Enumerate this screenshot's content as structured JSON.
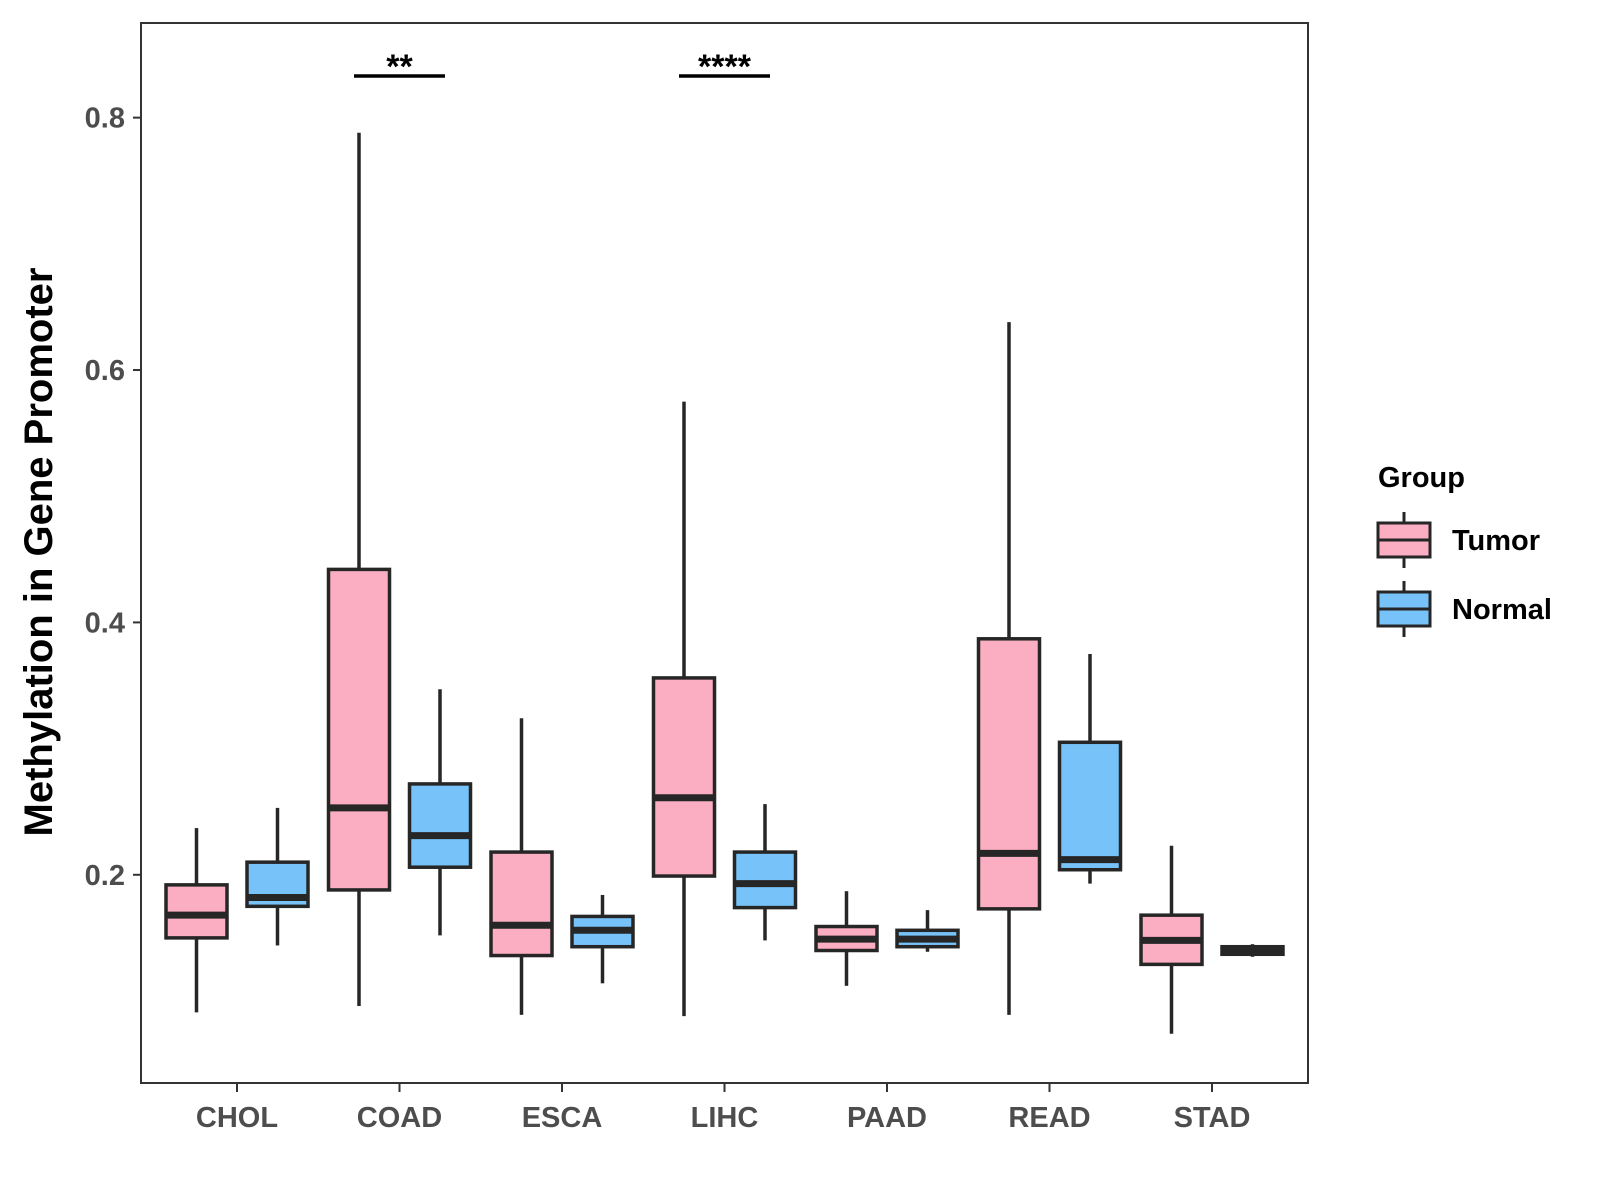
{
  "chart_data": {
    "type": "boxplot",
    "title": "",
    "xlabel": "",
    "ylabel": "Methylation in Gene Promoter",
    "ylim": [
      0.035,
      0.875
    ],
    "yticks": [
      0.2,
      0.4,
      0.6,
      0.8
    ],
    "ytick_labels": [
      "0.2",
      "0.4",
      "0.6",
      "0.8"
    ],
    "categories": [
      "CHOL",
      "COAD",
      "ESCA",
      "LIHC",
      "PAAD",
      "READ",
      "STAD"
    ],
    "legend": {
      "title": "Group",
      "position": "right",
      "items": [
        {
          "name": "Tumor",
          "color": "#FBAEC1"
        },
        {
          "name": "Normal",
          "color": "#77C2F8"
        }
      ]
    },
    "series": [
      {
        "name": "Tumor",
        "color": "#FBAEC1",
        "boxes": [
          {
            "min": 0.091,
            "q1": 0.15,
            "median": 0.168,
            "q3": 0.192,
            "max": 0.237
          },
          {
            "min": 0.096,
            "q1": 0.188,
            "median": 0.253,
            "q3": 0.442,
            "max": 0.788
          },
          {
            "min": 0.089,
            "q1": 0.136,
            "median": 0.16,
            "q3": 0.218,
            "max": 0.324
          },
          {
            "min": 0.088,
            "q1": 0.199,
            "median": 0.261,
            "q3": 0.356,
            "max": 0.575
          },
          {
            "min": 0.112,
            "q1": 0.14,
            "median": 0.149,
            "q3": 0.159,
            "max": 0.187
          },
          {
            "min": 0.089,
            "q1": 0.173,
            "median": 0.217,
            "q3": 0.387,
            "max": 0.638
          },
          {
            "min": 0.074,
            "q1": 0.129,
            "median": 0.148,
            "q3": 0.168,
            "max": 0.223
          }
        ]
      },
      {
        "name": "Normal",
        "color": "#77C2F8",
        "boxes": [
          {
            "min": 0.144,
            "q1": 0.175,
            "median": 0.182,
            "q3": 0.21,
            "max": 0.253
          },
          {
            "min": 0.152,
            "q1": 0.206,
            "median": 0.231,
            "q3": 0.272,
            "max": 0.347
          },
          {
            "min": 0.114,
            "q1": 0.143,
            "median": 0.156,
            "q3": 0.167,
            "max": 0.184
          },
          {
            "min": 0.148,
            "q1": 0.174,
            "median": 0.193,
            "q3": 0.218,
            "max": 0.256
          },
          {
            "min": 0.139,
            "q1": 0.143,
            "median": 0.149,
            "q3": 0.156,
            "max": 0.172
          },
          {
            "min": 0.193,
            "q1": 0.204,
            "median": 0.212,
            "q3": 0.305,
            "max": 0.375
          },
          {
            "min": 0.135,
            "q1": 0.137,
            "median": 0.14,
            "q3": 0.143,
            "max": 0.145
          }
        ]
      }
    ],
    "significance": [
      {
        "category": "COAD",
        "label": "**",
        "y": 0.833
      },
      {
        "category": "LIHC",
        "label": "****",
        "y": 0.833
      }
    ]
  }
}
